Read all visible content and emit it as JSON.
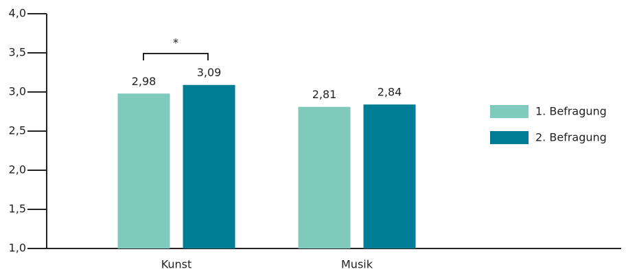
{
  "chart_data": {
    "type": "bar",
    "categories": [
      "Kunst",
      "Musik"
    ],
    "series": [
      {
        "name": "1. Befragung",
        "color": "#80c9bd",
        "values": [
          2.98,
          2.81
        ],
        "value_labels": [
          "2,98",
          "2,81"
        ]
      },
      {
        "name": "2. Befragung",
        "color": "#007c95",
        "values": [
          3.09,
          2.84
        ],
        "value_labels": [
          "3,09",
          "2,84"
        ]
      }
    ],
    "ylim": [
      1,
      4
    ],
    "yticks": [
      {
        "value": 1,
        "label": "1,0"
      },
      {
        "value": 1.5,
        "label": "1,5"
      },
      {
        "value": 2,
        "label": "2,0"
      },
      {
        "value": 2.5,
        "label": "2,5"
      },
      {
        "value": 3,
        "label": "3,0"
      },
      {
        "value": 3.5,
        "label": "3,5"
      },
      {
        "value": 4,
        "label": "4,0"
      }
    ],
    "annotation": "*",
    "legend": "right"
  }
}
